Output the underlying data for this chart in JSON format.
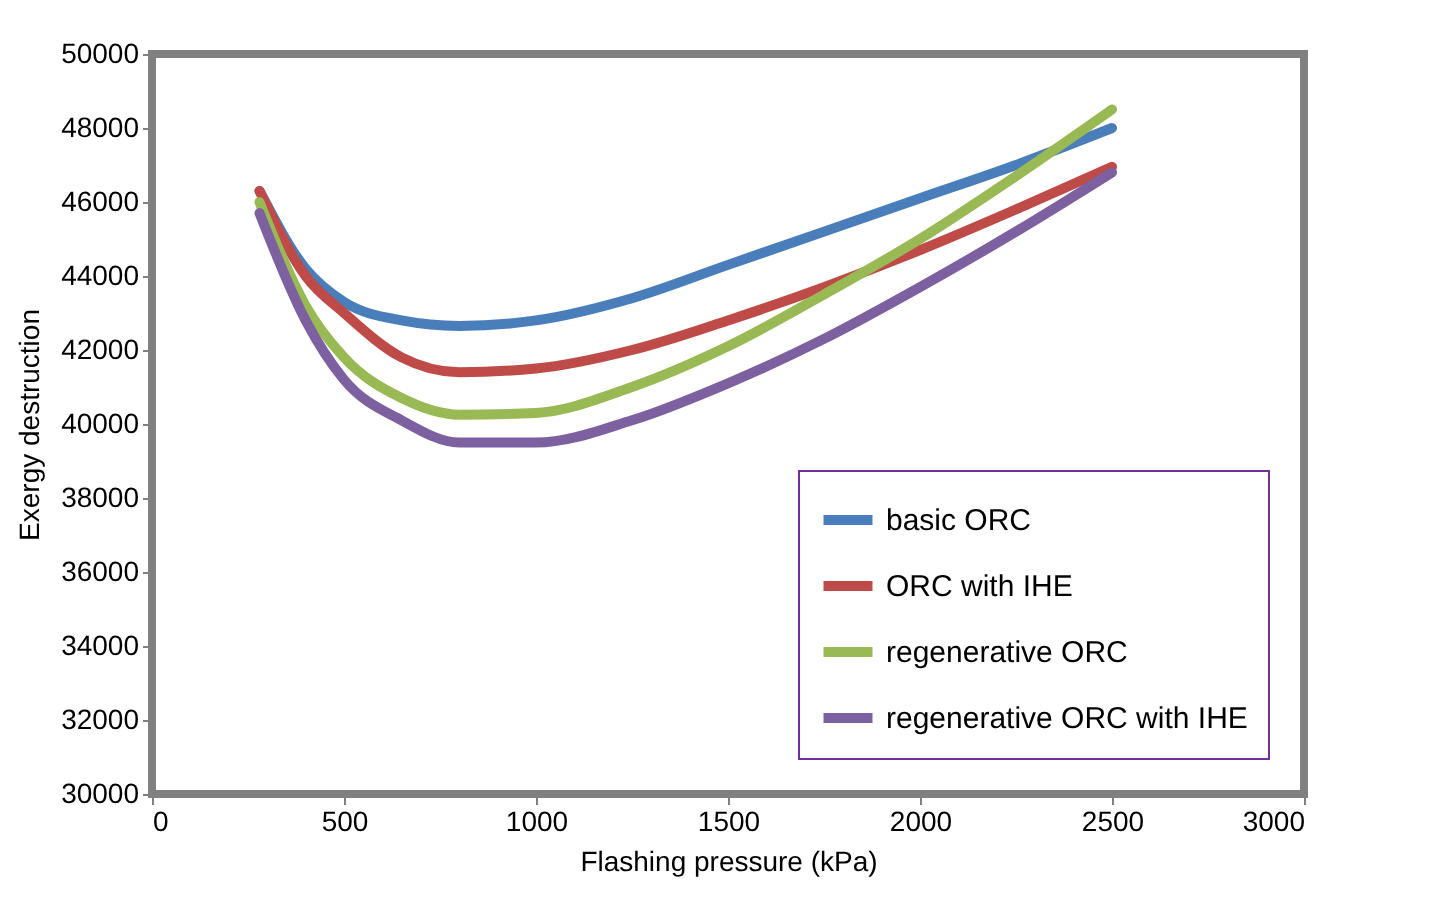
{
  "chart_data": {
    "type": "line",
    "xlabel": "Flashing pressure (kPa)",
    "ylabel": "Exergy destruction",
    "x": [
      280,
      400,
      500,
      650,
      800,
      1000,
      1250,
      1500,
      1750,
      2000,
      2250,
      2500
    ],
    "series": [
      {
        "name": "basic ORC",
        "color": "#4a7ebb",
        "values": [
          46300,
          44200,
          43300,
          42800,
          42650,
          42800,
          43400,
          44300,
          45200,
          46100,
          47000,
          48000
        ]
      },
      {
        "name": "ORC with IHE",
        "color": "#be4b48",
        "values": [
          46300,
          44000,
          43000,
          41800,
          41400,
          41500,
          42000,
          42800,
          43700,
          44700,
          45800,
          46950
        ]
      },
      {
        "name": "regenerative ORC",
        "color": "#98b954",
        "values": [
          46000,
          43200,
          41800,
          40700,
          40250,
          40300,
          41000,
          42100,
          43500,
          45000,
          46700,
          48500
        ]
      },
      {
        "name": "regenerative ORC with IHE",
        "color": "#7d60a0",
        "values": [
          45700,
          42800,
          41200,
          40100,
          39500,
          39500,
          40100,
          41100,
          42300,
          43700,
          45200,
          46800
        ]
      }
    ],
    "xlim": [
      0,
      3000
    ],
    "xticks": [
      0,
      500,
      1000,
      1500,
      2000,
      2500,
      3000
    ],
    "ylim": [
      30000,
      50000
    ],
    "yticks": [
      30000,
      32000,
      34000,
      36000,
      38000,
      40000,
      42000,
      44000,
      46000,
      48000,
      50000
    ],
    "grid": false,
    "legend": "bottom right",
    "marker": "none",
    "line_style": "solid"
  }
}
